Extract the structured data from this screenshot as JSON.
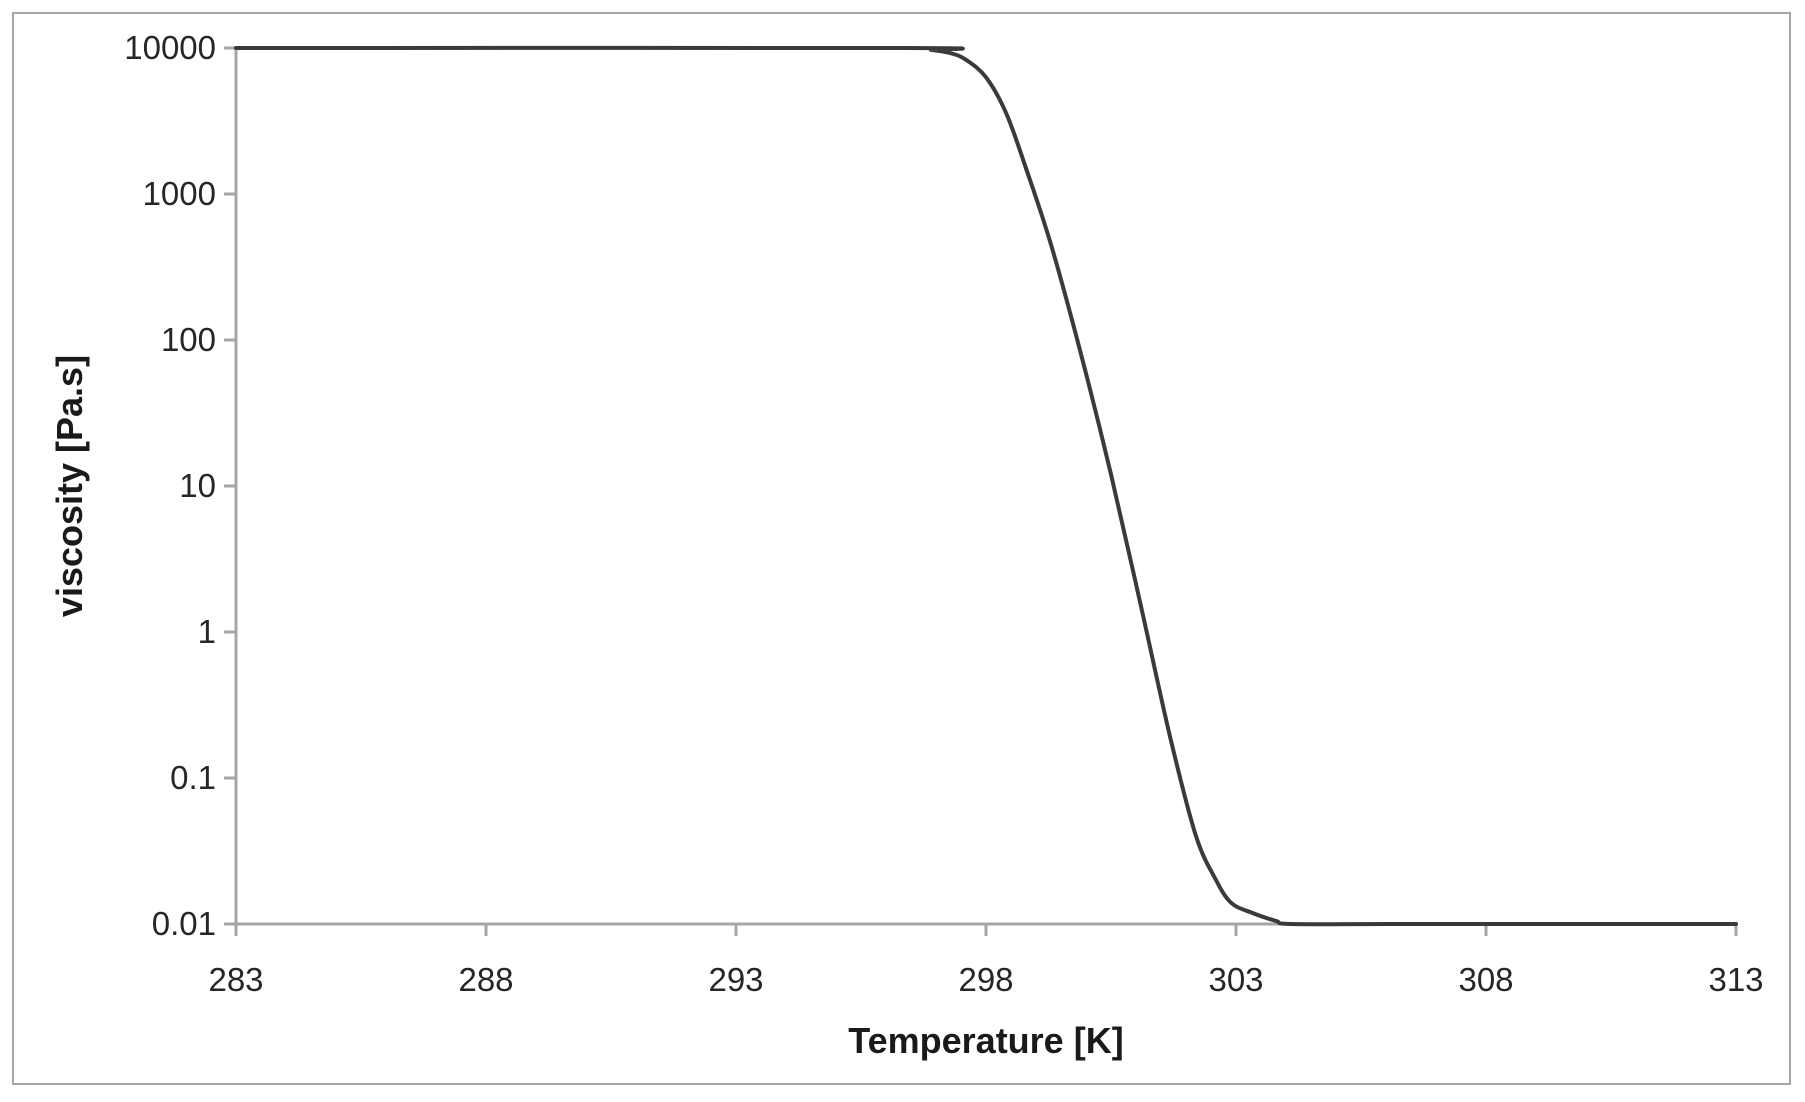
{
  "chart_data": {
    "type": "line",
    "title": "",
    "xlabel": "Temperature [K]",
    "ylabel": "viscosity [Pa.s]",
    "x_ticks": [
      "283",
      "288",
      "293",
      "298",
      "303",
      "308",
      "313"
    ],
    "y_ticks": [
      "10000",
      "1000",
      "100",
      "10",
      "1",
      "0.1",
      "0.01"
    ],
    "xlim": [
      283,
      313
    ],
    "ylim": [
      0.01,
      10000
    ],
    "y_scale": "log",
    "grid": false,
    "legend": "none",
    "line_color": "#3a3a3a",
    "axis_color": "#a6a6a6",
    "series": [
      {
        "x": [
          283,
          296.4,
          296.9,
          297.3,
          297.6,
          298.0,
          298.4,
          298.8,
          299.3,
          299.9,
          300.5,
          301.1,
          301.7,
          302.2,
          302.6,
          302.9,
          303.3,
          303.8,
          304.1,
          306,
          308,
          313
        ],
        "y": [
          10000,
          10000,
          9700,
          9200,
          8300,
          6300,
          3600,
          1500,
          450,
          80,
          12,
          1.5,
          0.18,
          0.04,
          0.02,
          0.014,
          0.012,
          0.0105,
          0.01,
          0.01,
          0.01,
          0.01
        ]
      }
    ]
  }
}
